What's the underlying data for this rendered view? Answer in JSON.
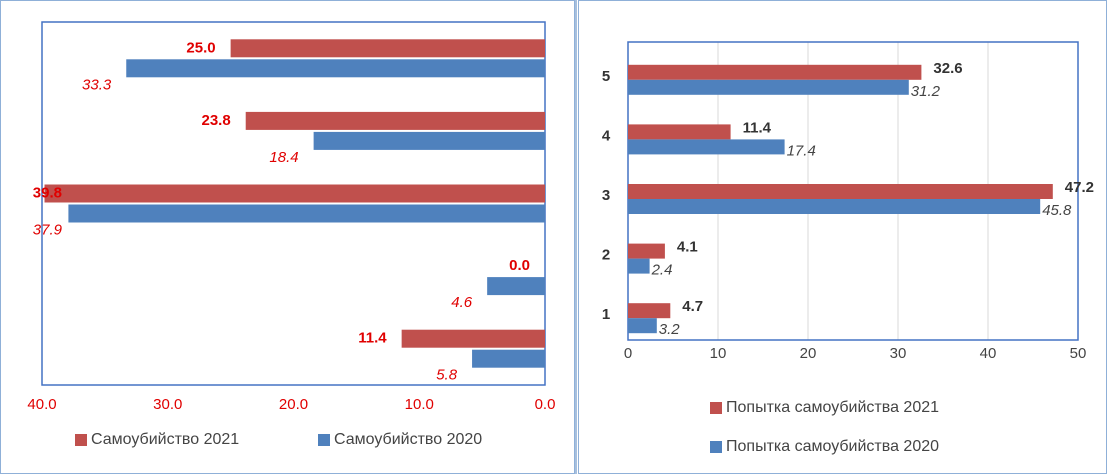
{
  "chart_data": [
    {
      "type": "bar",
      "orientation": "horizontal",
      "reverse_x": true,
      "categories": [
        null,
        null,
        null,
        null,
        null
      ],
      "series": [
        {
          "name": "Самоубийство 2021",
          "color": "#c0504d",
          "values": [
            25.0,
            23.8,
            39.8,
            0.0,
            11.4
          ],
          "value_labels": [
            "25.0",
            "23.8",
            "39.8",
            "0.0",
            "11.4"
          ]
        },
        {
          "name": "Самоубийство 2020",
          "color": "#4f81bd",
          "values": [
            33.3,
            18.4,
            37.9,
            4.6,
            5.8
          ],
          "value_labels": [
            "33.3",
            "18.4",
            "37.9",
            "4.6",
            "5.8"
          ]
        }
      ],
      "xlim": [
        0,
        40
      ],
      "xticks": [
        {
          "value": 40,
          "label": "40.0"
        },
        {
          "value": 30,
          "label": "30.0"
        },
        {
          "value": 20,
          "label": "20.0"
        },
        {
          "value": 10,
          "label": "10.0"
        },
        {
          "value": 0,
          "label": "0.0"
        }
      ],
      "grid": false,
      "legend": "bottom"
    },
    {
      "type": "bar",
      "orientation": "horizontal",
      "reverse_x": false,
      "categories": [
        "5",
        "4",
        "3",
        "2",
        "1"
      ],
      "series": [
        {
          "name": "Попытка самоубийства 2021",
          "color": "#c0504d",
          "values": [
            32.6,
            11.4,
            47.2,
            4.1,
            4.7
          ]
        },
        {
          "name": "Попытка самоубийства 2020",
          "color": "#4f81bd",
          "values": [
            31.2,
            17.4,
            45.8,
            2.4,
            3.2
          ]
        }
      ],
      "xlim": [
        0,
        50
      ],
      "xticks": [
        0,
        10,
        20,
        30,
        40,
        50
      ],
      "grid": true,
      "legend": "bottom"
    }
  ]
}
